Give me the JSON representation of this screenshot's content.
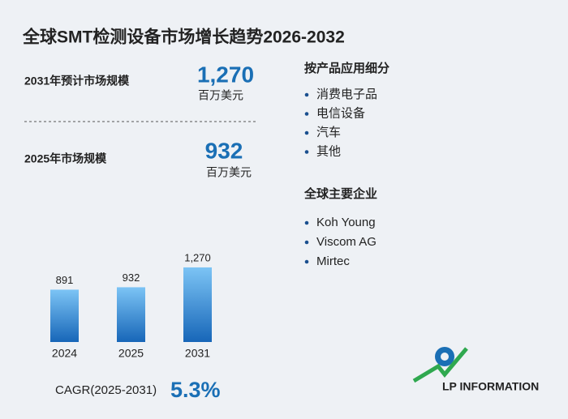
{
  "title": "全球SMT检测设备市场增长趋势2026-2032",
  "market_2031": {
    "label": "2031年预计市场规模",
    "value": "1,270",
    "unit": "百万美元"
  },
  "market_2025": {
    "label": "2025年市场规模",
    "value": "932",
    "unit": "百万美元"
  },
  "chart_data": {
    "type": "bar",
    "categories": [
      "2024",
      "2025",
      "2031"
    ],
    "values": [
      891,
      932,
      1270
    ],
    "value_labels": [
      "891",
      "932",
      "1,270"
    ],
    "color": "#1f7fd0"
  },
  "cagr": {
    "label": "CAGR(2025-2031)",
    "value": "5.3%"
  },
  "segments": {
    "title": "按产品应用细分",
    "items": [
      "消费电子品",
      "电信设备",
      "汽车",
      "其他"
    ]
  },
  "companies": {
    "title": "全球主要企业",
    "items": [
      "Koh Young",
      "Viscom AG",
      "Mirtec"
    ]
  },
  "logo": "LP INFORMATION"
}
